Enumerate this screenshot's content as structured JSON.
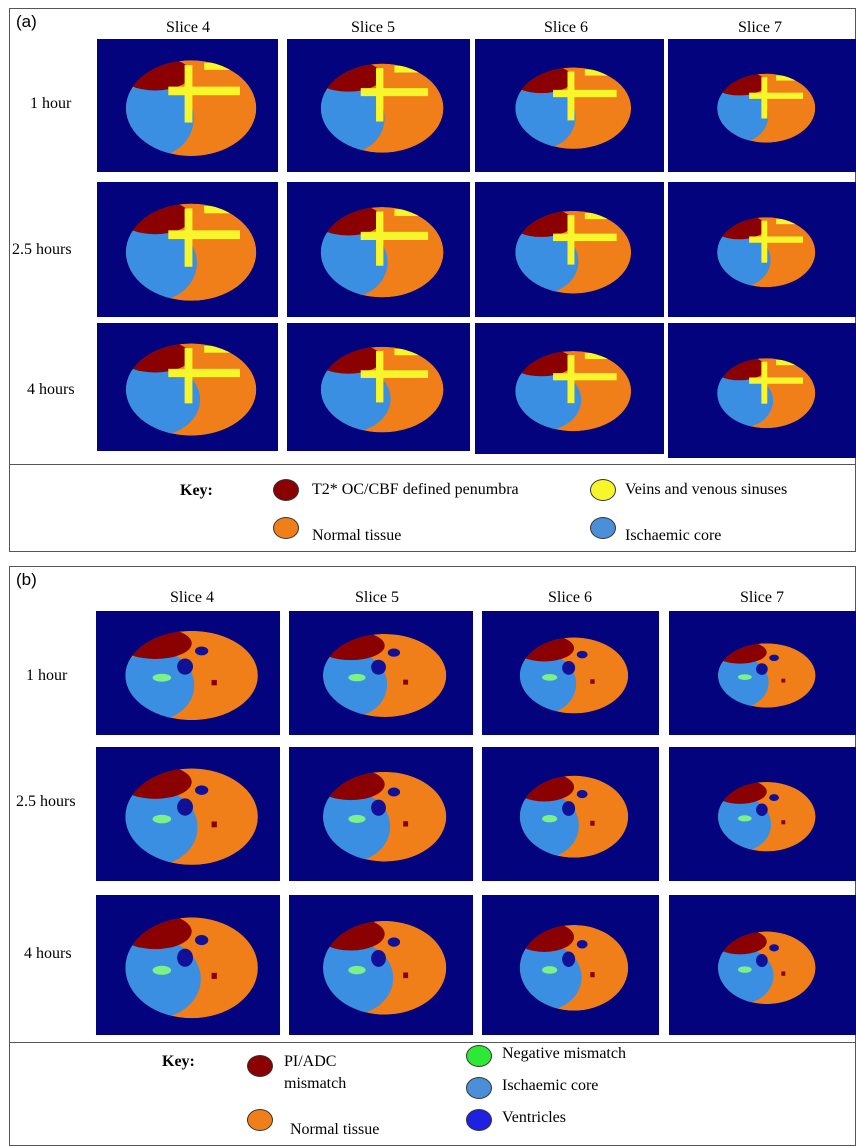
{
  "colors": {
    "background": "#03037e",
    "penumbra": "#8b0000",
    "normal": "#f07f1a",
    "veins": "#f6f62a",
    "core": "#3a8fe3",
    "negative": "#7df08a",
    "ventricles": "#101098"
  },
  "panel_a": {
    "letter": "(a)",
    "columns": [
      "Slice 4",
      "Slice 5",
      "Slice 6",
      "Slice 7"
    ],
    "rows": [
      "1 hour",
      "2.5 hours",
      "4 hours"
    ],
    "key_title": "Key:",
    "legend": [
      {
        "label": "T2* OC/CBF defined penumbra",
        "color": "#8b0000"
      },
      {
        "label": "Veins and venous sinuses",
        "color": "#f6f62a"
      },
      {
        "label": "Normal tissue",
        "color": "#f07f1a"
      },
      {
        "label": "Ischaemic core",
        "color": "#4a8fd8"
      }
    ]
  },
  "panel_b": {
    "letter": "(b)",
    "columns": [
      "Slice 4",
      "Slice 5",
      "Slice 6",
      "Slice 7"
    ],
    "rows": [
      "1 hour",
      "2.5 hours",
      "4 hours"
    ],
    "key_title": "Key:",
    "legend": [
      {
        "label_line1": "PI/ADC",
        "label_line2": "mismatch",
        "color": "#8b0000"
      },
      {
        "label": "Negative mismatch",
        "color": "#2ee838"
      },
      {
        "label": "Ischaemic core",
        "color": "#4a8fd8"
      },
      {
        "label": "Ventricles",
        "color": "#2020e0"
      },
      {
        "label": "Normal tissue",
        "color": "#f07f1a"
      }
    ]
  }
}
